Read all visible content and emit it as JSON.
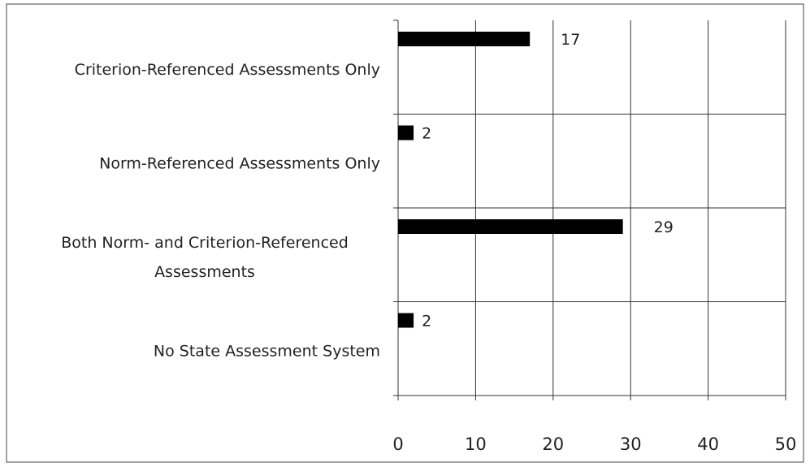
{
  "chart_data": {
    "type": "bar",
    "orientation": "horizontal",
    "categories": [
      "Criterion-Referenced Assessments Only",
      "Norm-Referenced Assessments Only",
      "Both Norm- and Criterion-Referenced\nAssessments",
      "No State Assessment System"
    ],
    "values": [
      17,
      2,
      29,
      2
    ],
    "color": "#000000",
    "xlim": [
      0,
      50
    ],
    "xticks": [
      0,
      10,
      20,
      30,
      40,
      50
    ],
    "grid": true
  }
}
